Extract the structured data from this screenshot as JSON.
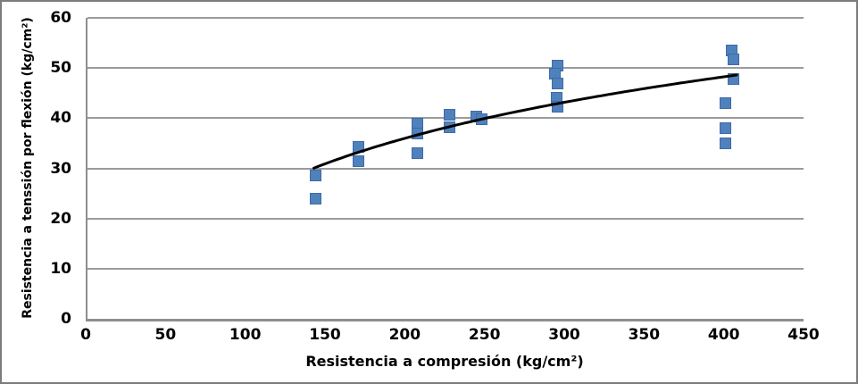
{
  "window": {
    "background": "#ffffff",
    "frame_border_color": "#7c7c7c"
  },
  "chart_data": {
    "type": "scatter",
    "title": "",
    "xlabel": "Resistencia a compresión (kg/cm²)",
    "ylabel": "Resistencia a tenssión por flexión (kg/cm²)",
    "xlim": [
      0,
      450
    ],
    "ylim": [
      0,
      60
    ],
    "xticks": [
      0,
      50,
      100,
      150,
      200,
      250,
      300,
      350,
      400,
      450
    ],
    "yticks": [
      0,
      10,
      20,
      30,
      40,
      50,
      60
    ],
    "grid": "horizontal-only",
    "legend": "none",
    "series": [
      {
        "name": "puntos",
        "marker": "square",
        "color": "#4F81BD",
        "points": [
          [
            144,
            28.5
          ],
          [
            144,
            24
          ],
          [
            171,
            34.2
          ],
          [
            171,
            31.4
          ],
          [
            208,
            38.9
          ],
          [
            208,
            37
          ],
          [
            208,
            33
          ],
          [
            228,
            40.6
          ],
          [
            228,
            38.2
          ],
          [
            245,
            40.3
          ],
          [
            248,
            39.8
          ],
          [
            296,
            50.5
          ],
          [
            294,
            48.8
          ],
          [
            296,
            47
          ],
          [
            295,
            44
          ],
          [
            296,
            42.3
          ],
          [
            405,
            53.5
          ],
          [
            406,
            51.7
          ],
          [
            406,
            47.8
          ],
          [
            401,
            43
          ],
          [
            401,
            38
          ],
          [
            401,
            35
          ]
        ]
      }
    ],
    "trendline": {
      "type": "logarithmic",
      "a": 17.7,
      "b": -57.8,
      "x_start": 143,
      "x_end": 408,
      "color": "#000000",
      "stroke_width": 3
    },
    "colors": {
      "gridline": "#9b9b9b",
      "axis": "#8e8e8e",
      "text": "#000000"
    }
  }
}
